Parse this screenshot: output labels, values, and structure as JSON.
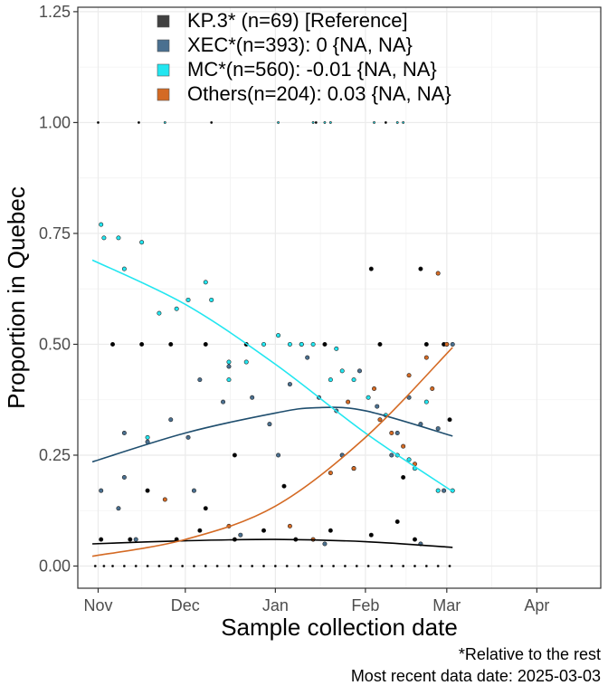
{
  "chart_data": {
    "type": "scatter",
    "xlabel": "Sample collection date",
    "ylabel": "Proportion in Quebec",
    "ylim": [
      -0.05,
      1.26
    ],
    "xlim": [
      "2024-10-25",
      "2025-04-23"
    ],
    "y_ticks": [
      0.0,
      0.25,
      0.5,
      0.75,
      1.0,
      1.25
    ],
    "y_tick_labels": [
      "0.00",
      "0.25",
      "0.50",
      "0.75",
      "1.00",
      "1.25"
    ],
    "x_ticks": [
      "2024-11-01",
      "2024-12-01",
      "2025-01-01",
      "2025-02-01",
      "2025-03-01",
      "2025-04-01"
    ],
    "x_tick_labels": [
      "Nov",
      "Dec",
      "Jan",
      "Feb",
      "Mar",
      "Apr"
    ],
    "grid": true,
    "legend_position": "top-left",
    "legend": [
      {
        "label": "KP.3* (n=69)  [Reference]",
        "color": "#404040"
      },
      {
        "label": "XEC*(n=393): 0 {NA, NA}",
        "color": "#4a7090"
      },
      {
        "label": "MC*(n=560): -0.01 {NA, NA}",
        "color": "#22e6f0"
      },
      {
        "label": "Others(n=204): 0.03 {NA, NA}",
        "color": "#d46a24"
      }
    ],
    "caption_lines": [
      "*Relative to the rest",
      "Most recent data date: 2025-03-03"
    ],
    "series": [
      {
        "name": "KP.3*",
        "color": "#000000",
        "fit": [
          [
            "2024-10-30",
            0.05
          ],
          [
            "2024-12-01",
            0.057
          ],
          [
            "2025-01-01",
            0.06
          ],
          [
            "2025-02-01",
            0.055
          ],
          [
            "2025-03-03",
            0.042
          ]
        ],
        "points": [
          [
            "2024-10-31",
            0.0
          ],
          [
            "2024-11-03",
            0.0
          ],
          [
            "2024-11-06",
            0.0
          ],
          [
            "2024-11-10",
            0.0
          ],
          [
            "2024-11-14",
            0.0
          ],
          [
            "2024-11-18",
            0.0
          ],
          [
            "2024-11-22",
            0.0
          ],
          [
            "2024-11-26",
            0.0
          ],
          [
            "2024-11-30",
            0.0
          ],
          [
            "2024-12-04",
            0.0
          ],
          [
            "2024-12-08",
            0.0
          ],
          [
            "2024-12-12",
            0.0
          ],
          [
            "2024-12-16",
            0.0
          ],
          [
            "2024-12-20",
            0.0
          ],
          [
            "2024-12-24",
            0.0
          ],
          [
            "2024-12-28",
            0.0
          ],
          [
            "2025-01-01",
            0.0
          ],
          [
            "2025-01-05",
            0.0
          ],
          [
            "2025-01-09",
            0.0
          ],
          [
            "2025-01-13",
            0.0
          ],
          [
            "2025-01-17",
            0.0
          ],
          [
            "2025-01-21",
            0.0
          ],
          [
            "2025-01-25",
            0.0
          ],
          [
            "2025-01-29",
            0.0
          ],
          [
            "2025-02-02",
            0.0
          ],
          [
            "2025-02-06",
            0.0
          ],
          [
            "2025-02-10",
            0.0
          ],
          [
            "2025-02-14",
            0.0
          ],
          [
            "2025-02-18",
            0.0
          ],
          [
            "2025-02-22",
            0.0
          ],
          [
            "2025-02-26",
            0.0
          ],
          [
            "2025-03-02",
            0.0
          ],
          [
            "2024-11-02",
            0.06
          ],
          [
            "2024-11-12",
            0.06
          ],
          [
            "2024-11-28",
            0.06
          ],
          [
            "2024-12-06",
            0.08
          ],
          [
            "2024-12-18",
            0.06
          ],
          [
            "2024-12-28",
            0.08
          ],
          [
            "2025-01-08",
            0.06
          ],
          [
            "2025-01-20",
            0.08
          ],
          [
            "2025-02-03",
            0.07
          ],
          [
            "2025-02-12",
            0.1
          ],
          [
            "2025-02-18",
            0.06
          ],
          [
            "2024-11-06",
            0.5
          ],
          [
            "2024-11-16",
            0.5
          ],
          [
            "2024-11-26",
            0.5
          ],
          [
            "2024-12-08",
            0.5
          ],
          [
            "2024-12-22",
            0.5
          ],
          [
            "2025-01-10",
            0.5
          ],
          [
            "2025-01-18",
            0.5
          ],
          [
            "2025-02-06",
            0.5
          ],
          [
            "2025-02-22",
            0.5
          ],
          [
            "2025-02-28",
            0.5
          ],
          [
            "2024-11-18",
            0.17
          ],
          [
            "2024-12-08",
            0.13
          ],
          [
            "2024-12-18",
            0.25
          ],
          [
            "2025-01-04",
            0.18
          ],
          [
            "2025-01-24",
            0.25
          ],
          [
            "2025-02-14",
            0.2
          ],
          [
            "2025-03-02",
            0.33
          ],
          [
            "2024-11-01",
            1.0
          ],
          [
            "2024-11-15",
            1.0
          ],
          [
            "2024-12-10",
            1.0
          ],
          [
            "2025-01-15",
            1.0
          ],
          [
            "2025-02-08",
            1.0
          ],
          [
            "2025-02-20",
            0.67
          ],
          [
            "2025-02-03",
            0.67
          ]
        ]
      },
      {
        "name": "XEC*",
        "color": "#4a7090",
        "fit": [
          [
            "2024-10-30",
            0.235
          ],
          [
            "2024-12-01",
            0.3
          ],
          [
            "2025-01-01",
            0.345
          ],
          [
            "2025-01-15",
            0.357
          ],
          [
            "2025-02-01",
            0.35
          ],
          [
            "2025-03-03",
            0.293
          ]
        ],
        "points": [
          [
            "2024-11-02",
            0.17
          ],
          [
            "2024-11-08",
            0.13
          ],
          [
            "2024-11-10",
            0.3
          ],
          [
            "2024-11-18",
            0.28
          ],
          [
            "2024-11-26",
            0.33
          ],
          [
            "2024-12-02",
            0.29
          ],
          [
            "2024-12-06",
            0.42
          ],
          [
            "2024-12-14",
            0.37
          ],
          [
            "2024-12-16",
            0.45
          ],
          [
            "2024-12-24",
            0.38
          ],
          [
            "2024-12-30",
            0.32
          ],
          [
            "2025-01-06",
            0.41
          ],
          [
            "2025-01-12",
            0.47
          ],
          [
            "2025-01-16",
            0.38
          ],
          [
            "2025-01-22",
            0.35
          ],
          [
            "2025-01-24",
            0.25
          ],
          [
            "2025-01-30",
            0.44
          ],
          [
            "2025-02-05",
            0.36
          ],
          [
            "2025-02-10",
            0.25
          ],
          [
            "2025-02-16",
            0.38
          ],
          [
            "2025-02-20",
            0.32
          ],
          [
            "2025-02-26",
            0.31
          ],
          [
            "2025-03-01",
            0.5
          ],
          [
            "2025-03-03",
            0.5
          ],
          [
            "2024-11-10",
            0.2
          ],
          [
            "2024-12-04",
            0.17
          ],
          [
            "2025-01-02",
            0.25
          ],
          [
            "2025-01-28",
            0.22
          ],
          [
            "2025-02-12",
            0.3
          ],
          [
            "2025-02-28",
            0.17
          ],
          [
            "2024-11-14",
            0.06
          ],
          [
            "2024-12-20",
            0.07
          ],
          [
            "2025-01-18",
            0.05
          ],
          [
            "2025-02-20",
            0.05
          ]
        ]
      },
      {
        "name": "MC*",
        "color": "#22e6f0",
        "fit": [
          [
            "2024-10-30",
            0.69
          ],
          [
            "2024-12-01",
            0.59
          ],
          [
            "2025-01-01",
            0.455
          ],
          [
            "2025-02-01",
            0.3
          ],
          [
            "2025-03-03",
            0.168
          ]
        ],
        "points": [
          [
            "2024-11-02",
            0.77
          ],
          [
            "2024-11-03",
            0.74
          ],
          [
            "2024-11-08",
            0.74
          ],
          [
            "2024-11-10",
            0.67
          ],
          [
            "2024-11-16",
            0.73
          ],
          [
            "2024-11-22",
            0.57
          ],
          [
            "2024-11-28",
            0.58
          ],
          [
            "2024-12-02",
            0.6
          ],
          [
            "2024-12-08",
            0.64
          ],
          [
            "2024-12-10",
            0.6
          ],
          [
            "2024-12-16",
            0.42
          ],
          [
            "2024-12-22",
            0.46
          ],
          [
            "2024-12-28",
            0.5
          ],
          [
            "2025-01-02",
            0.52
          ],
          [
            "2025-01-06",
            0.5
          ],
          [
            "2025-01-10",
            0.5
          ],
          [
            "2025-01-14",
            0.5
          ],
          [
            "2025-01-20",
            0.42
          ],
          [
            "2025-01-24",
            0.44
          ],
          [
            "2025-01-28",
            0.42
          ],
          [
            "2025-02-02",
            0.38
          ],
          [
            "2025-02-08",
            0.34
          ],
          [
            "2025-02-12",
            0.25
          ],
          [
            "2025-02-16",
            0.24
          ],
          [
            "2025-02-22",
            0.37
          ],
          [
            "2025-02-26",
            0.17
          ],
          [
            "2025-03-03",
            0.17
          ],
          [
            "2024-12-16",
            0.46
          ],
          [
            "2025-01-22",
            0.49
          ],
          [
            "2025-02-18",
            0.22
          ],
          [
            "2024-11-18",
            0.29
          ],
          [
            "2024-11-24",
            1.0
          ],
          [
            "2025-01-02",
            1.0
          ],
          [
            "2025-01-14",
            1.0
          ],
          [
            "2025-01-18",
            1.0
          ],
          [
            "2025-01-20",
            1.0
          ],
          [
            "2025-02-04",
            1.0
          ],
          [
            "2025-02-12",
            1.0
          ],
          [
            "2025-02-14",
            1.0
          ]
        ]
      },
      {
        "name": "Others",
        "color": "#d46a24",
        "fit": [
          [
            "2024-10-30",
            0.022
          ],
          [
            "2024-12-01",
            0.06
          ],
          [
            "2025-01-01",
            0.135
          ],
          [
            "2025-02-01",
            0.29
          ],
          [
            "2025-03-03",
            0.493
          ]
        ],
        "points": [
          [
            "2024-11-24",
            0.15
          ],
          [
            "2024-12-16",
            0.09
          ],
          [
            "2025-01-06",
            0.09
          ],
          [
            "2025-01-14",
            0.06
          ],
          [
            "2025-01-20",
            0.21
          ],
          [
            "2025-01-28",
            0.22
          ],
          [
            "2025-02-04",
            0.4
          ],
          [
            "2025-02-06",
            0.33
          ],
          [
            "2025-02-10",
            0.3
          ],
          [
            "2025-02-14",
            0.27
          ],
          [
            "2025-02-18",
            0.23
          ],
          [
            "2025-02-22",
            0.47
          ],
          [
            "2025-02-24",
            0.4
          ],
          [
            "2025-02-26",
            0.66
          ],
          [
            "2025-03-01",
            0.5
          ],
          [
            "2025-01-26",
            0.37
          ],
          [
            "2025-02-16",
            0.43
          ]
        ]
      }
    ]
  }
}
